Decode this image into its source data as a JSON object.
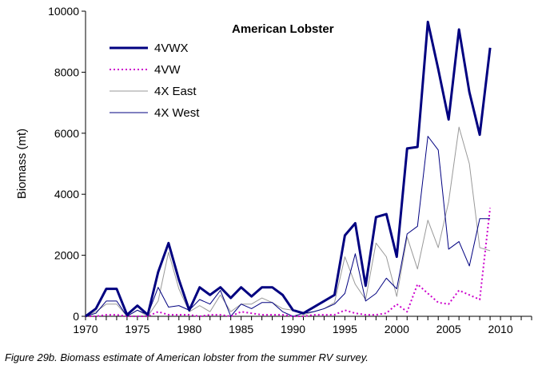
{
  "chart_data": {
    "type": "line",
    "title": "American Lobster",
    "xlabel": "",
    "ylabel": "Biomass (mt)",
    "xlim": [
      1970,
      2013
    ],
    "ylim": [
      0,
      10000
    ],
    "x_ticks": [
      1970,
      1975,
      1980,
      1985,
      1990,
      1995,
      2000,
      2005,
      2010
    ],
    "y_ticks": [
      0,
      2000,
      4000,
      6000,
      8000,
      10000
    ],
    "grid": false,
    "legend_position": "top-left",
    "x": [
      1970,
      1971,
      1972,
      1973,
      1974,
      1975,
      1976,
      1977,
      1978,
      1979,
      1980,
      1981,
      1982,
      1983,
      1984,
      1985,
      1986,
      1987,
      1988,
      1989,
      1990,
      1991,
      1992,
      1993,
      1994,
      1995,
      1996,
      1997,
      1998,
      1999,
      2000,
      2001,
      2002,
      2003,
      2004,
      2005,
      2006,
      2007,
      2008,
      2009
    ],
    "series": [
      {
        "name": "4VWX",
        "color": "#000080",
        "style": "solid-thick",
        "values": [
          0,
          250,
          900,
          900,
          50,
          350,
          50,
          1450,
          2400,
          1200,
          200,
          950,
          700,
          950,
          600,
          950,
          650,
          950,
          950,
          700,
          200,
          100,
          300,
          500,
          700,
          2650,
          3050,
          1000,
          3250,
          3350,
          1950,
          5500,
          5550,
          9650,
          8100,
          6450,
          9400,
          7350,
          5950,
          8800
        ]
      },
      {
        "name": "4VW",
        "color": "#cc00cc",
        "style": "dotted",
        "values": [
          0,
          0,
          50,
          50,
          0,
          0,
          0,
          150,
          50,
          50,
          50,
          0,
          50,
          50,
          0,
          150,
          100,
          50,
          50,
          50,
          0,
          0,
          50,
          50,
          50,
          200,
          100,
          50,
          50,
          100,
          400,
          150,
          1050,
          750,
          450,
          400,
          850,
          700,
          550,
          3550
        ]
      },
      {
        "name": "4X East",
        "color": "#999999",
        "style": "solid-thin",
        "values": [
          0,
          150,
          400,
          400,
          0,
          200,
          0,
          500,
          2100,
          900,
          150,
          350,
          150,
          700,
          150,
          400,
          400,
          600,
          450,
          250,
          200,
          50,
          150,
          250,
          450,
          1950,
          1050,
          550,
          2400,
          1950,
          650,
          2600,
          1550,
          3150,
          2250,
          3750,
          6200,
          5000,
          2250,
          2150
        ]
      },
      {
        "name": "4X West",
        "color": "#000080",
        "style": "solid-thin",
        "values": [
          0,
          100,
          500,
          500,
          0,
          200,
          50,
          950,
          300,
          350,
          200,
          550,
          400,
          850,
          0,
          400,
          250,
          450,
          450,
          150,
          0,
          100,
          150,
          250,
          400,
          750,
          2050,
          500,
          750,
          1250,
          900,
          2700,
          2950,
          5900,
          5450,
          2200,
          2450,
          1650,
          3200,
          3200
        ]
      }
    ]
  },
  "caption": "Figure 29b. Biomass estimate of American lobster from the summer RV survey."
}
